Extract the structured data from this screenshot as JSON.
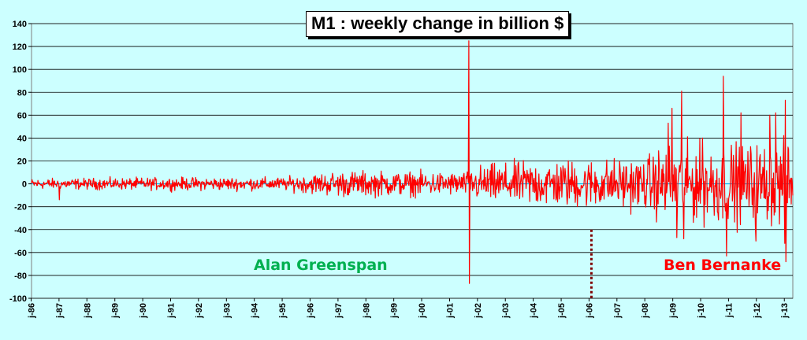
{
  "chart_data": {
    "type": "line",
    "title": "M1 : weekly change in billion $",
    "ylim": [
      -100,
      140
    ],
    "yticks": [
      140,
      120,
      100,
      80,
      60,
      40,
      20,
      0,
      -20,
      -40,
      -60,
      -80,
      -100
    ],
    "grid": true,
    "xlim": [
      "1986-01-06",
      "2013-04-22"
    ],
    "x_tick_labels": [
      "j-86",
      "j-87",
      "j-88",
      "j-89",
      "j-90",
      "j-91",
      "j-92",
      "j-93",
      "j-94",
      "j-95",
      "j-96",
      "j-97",
      "j-98",
      "j-99",
      "j-00",
      "j-01",
      "j-02",
      "j-03",
      "j-04",
      "j-05",
      "j-06",
      "j-07",
      "j-08",
      "j-09",
      "j-10",
      "j-11",
      "j-12",
      "j-13"
    ],
    "series": [
      {
        "color": "#ff0000",
        "amplitude_envelope": [
          {
            "x": "1986-01-01",
            "y": 4
          },
          {
            "x": "1992-01-01",
            "y": 5
          },
          {
            "x": "1995-01-01",
            "y": 5
          },
          {
            "x": "1997-01-01",
            "y": 10
          },
          {
            "x": "2001-08-01",
            "y": 9
          },
          {
            "x": "2002-01-01",
            "y": 14
          },
          {
            "x": "2004-01-01",
            "y": 18
          },
          {
            "x": "2008-01-01",
            "y": 20
          },
          {
            "x": "2008-09-01",
            "y": 30
          },
          {
            "x": "2013-04-22",
            "y": 32
          }
        ],
        "spikes": [
          {
            "x": "1987-01-05",
            "y": -14
          },
          {
            "x": "2001-09-10",
            "y": 125
          },
          {
            "x": "2001-09-17",
            "y": -87
          },
          {
            "x": "2008-11-03",
            "y": 53
          },
          {
            "x": "2008-12-22",
            "y": 66
          },
          {
            "x": "2009-02-23",
            "y": -47
          },
          {
            "x": "2009-04-27",
            "y": 81
          },
          {
            "x": "2009-05-25",
            "y": -48
          },
          {
            "x": "2010-01-25",
            "y": 40
          },
          {
            "x": "2010-10-25",
            "y": 94
          },
          {
            "x": "2010-12-06",
            "y": -63
          },
          {
            "x": "2011-06-13",
            "y": 62
          },
          {
            "x": "2011-12-26",
            "y": -50
          },
          {
            "x": "2012-06-25",
            "y": 60
          },
          {
            "x": "2012-09-10",
            "y": 62
          },
          {
            "x": "2013-01-07",
            "y": -52
          },
          {
            "x": "2013-01-14",
            "y": 73
          },
          {
            "x": "2013-01-21",
            "y": -68
          }
        ]
      }
    ],
    "annotations": [
      {
        "text": "Alan Greenspan",
        "color": "#00b050"
      },
      {
        "text": "Ben Bernanke",
        "color": "#ff0000"
      }
    ],
    "marker_line": {
      "x": "2006-02-01",
      "y_from": -40,
      "y_to": -100,
      "color": "#800000",
      "style": "dotted"
    }
  },
  "colors": {
    "background": "#ccffff",
    "plot_background": "#ccffff",
    "grid": "#000000",
    "zero_line": "#00b0f0"
  }
}
